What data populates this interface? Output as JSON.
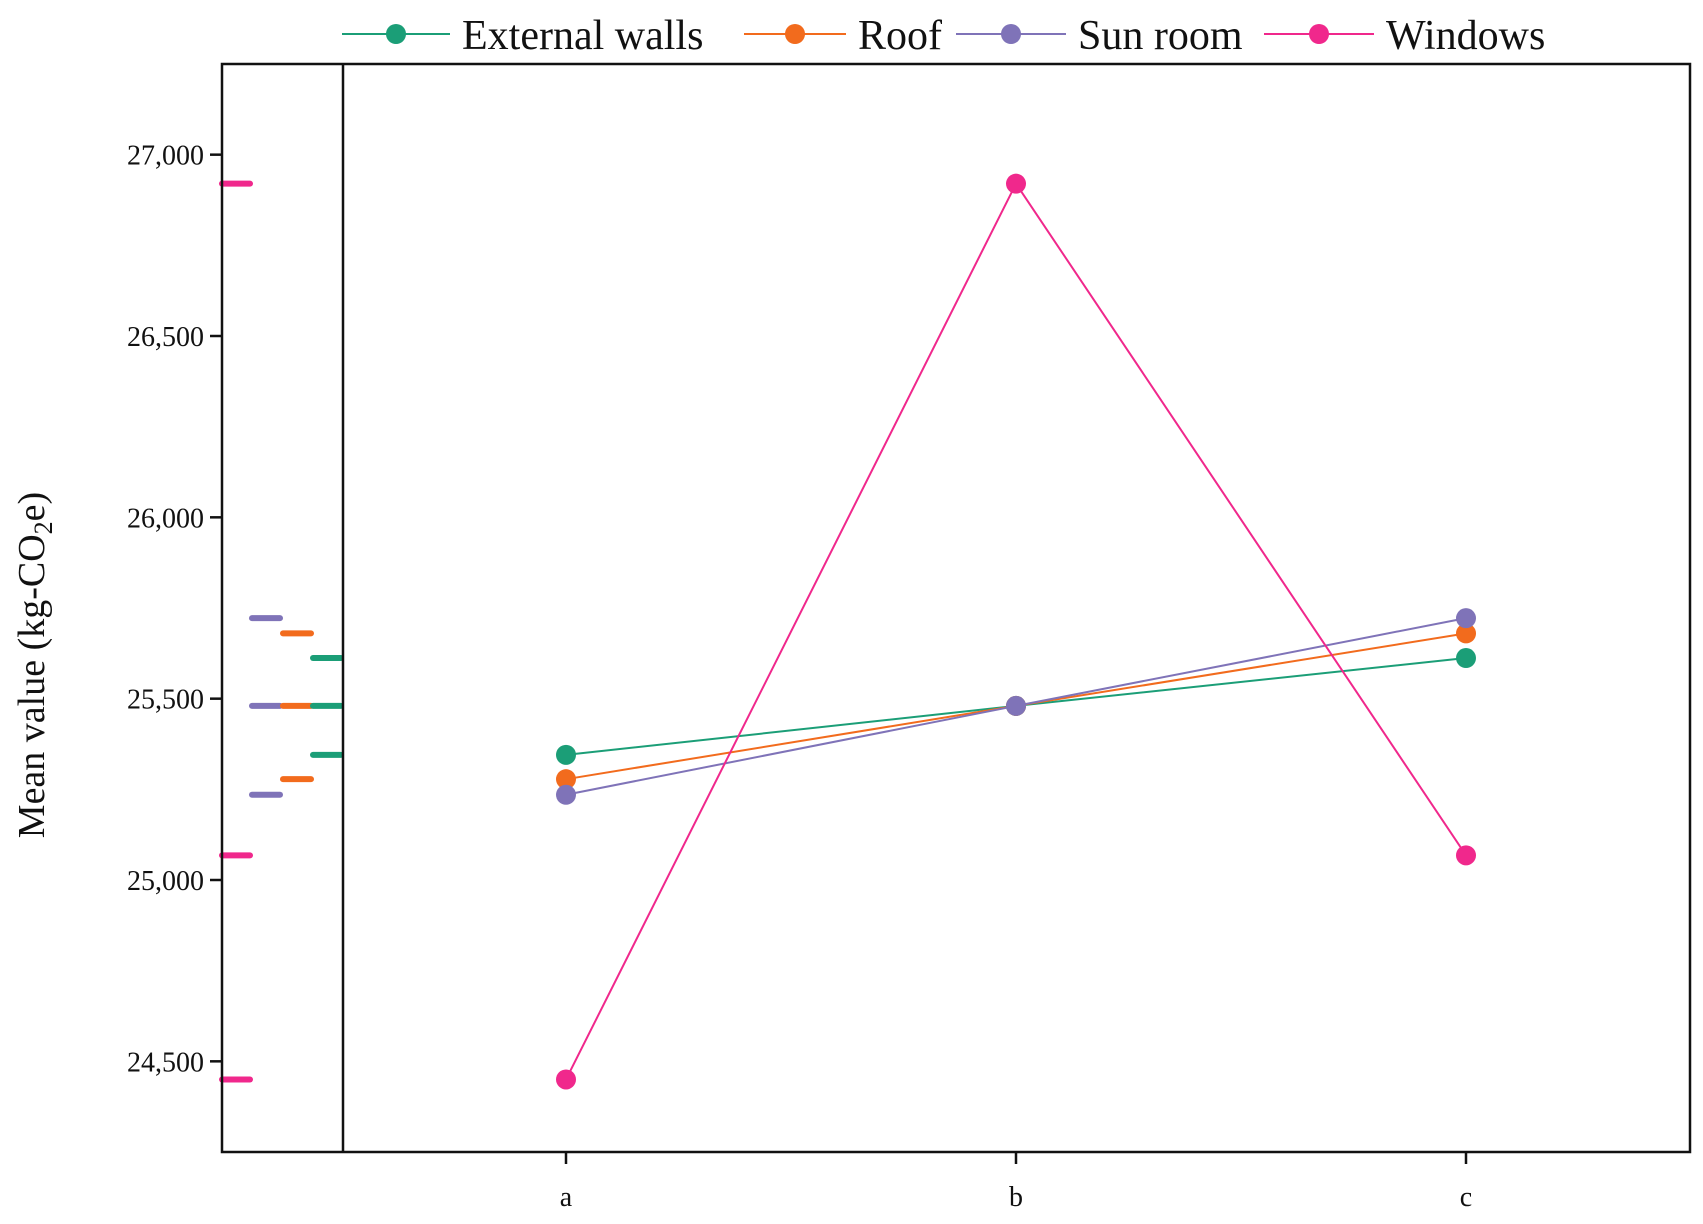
{
  "chart_data": {
    "type": "line",
    "title": "",
    "xlabel": "",
    "ylabel": {
      "prefix": "Mean value (kg-CO",
      "subscript": "2",
      "suffix": "e)"
    },
    "categories": [
      "a",
      "b",
      "c"
    ],
    "ylim": [
      24250,
      27250
    ],
    "yticks": [
      24500,
      25000,
      25500,
      26000,
      26500,
      27000
    ],
    "ytick_labels": [
      "24,500",
      "25,000",
      "25,500",
      "26,000",
      "26,500",
      "27,000"
    ],
    "grid": false,
    "legend_position": "top",
    "series": [
      {
        "name": "External walls",
        "color": "#1b9e77",
        "values": [
          25345,
          25480,
          25612
        ]
      },
      {
        "name": "Roof",
        "color": "#f26b1d",
        "values": [
          25278,
          25480,
          25680
        ]
      },
      {
        "name": "Sun room",
        "color": "#7f73b8",
        "values": [
          25235,
          25480,
          25722
        ]
      },
      {
        "name": "Windows",
        "color": "#f0288c",
        "values": [
          24450,
          26920,
          25068
        ]
      }
    ],
    "marginal_rug_order": [
      "Windows",
      "Sun room",
      "Roof",
      "External walls"
    ]
  }
}
